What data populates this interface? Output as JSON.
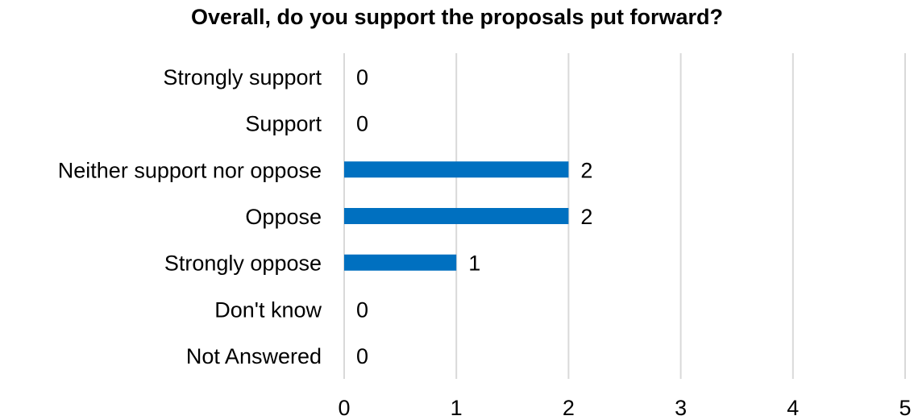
{
  "chart_data": {
    "type": "bar",
    "orientation": "horizontal",
    "title": "Overall, do you support the proposals put forward?",
    "categories": [
      "Strongly support",
      "Support",
      "Neither support nor oppose",
      "Oppose",
      "Strongly oppose",
      "Don't know",
      "Not Answered"
    ],
    "values": [
      0,
      0,
      2,
      2,
      1,
      0,
      0
    ],
    "xlabel": "",
    "ylabel": "",
    "xlim": [
      0,
      5
    ],
    "xticks": [
      0,
      1,
      2,
      3,
      4,
      5
    ],
    "grid": "vertical",
    "data_labels": true,
    "bar_color": "#0070C0",
    "grid_color": "#D9D9D9"
  }
}
